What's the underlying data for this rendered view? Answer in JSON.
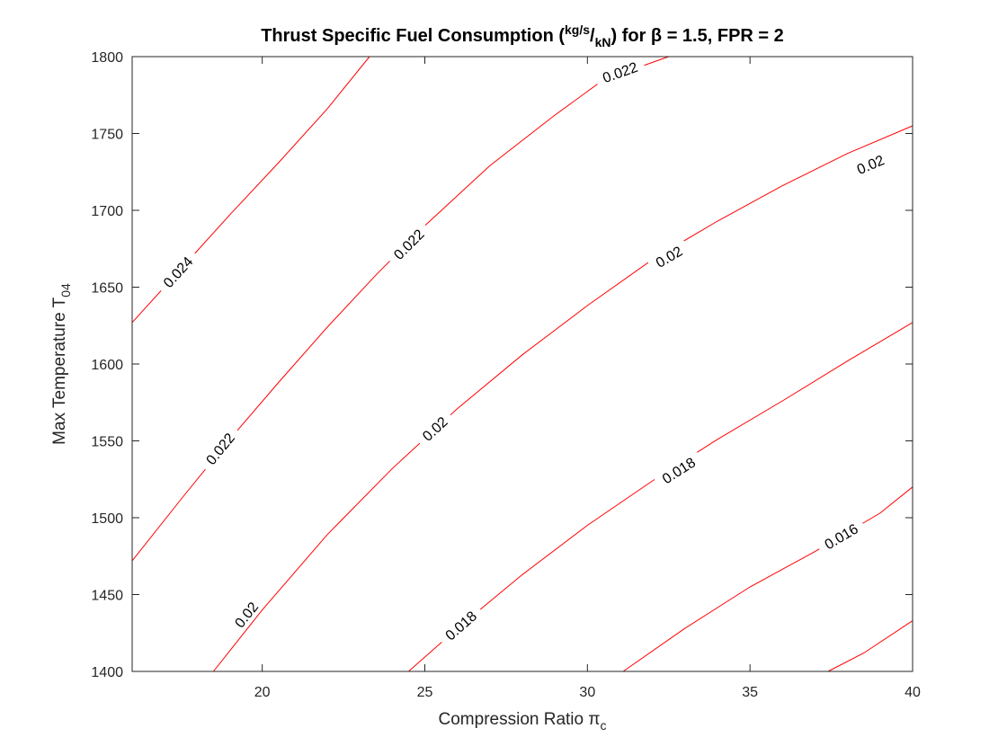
{
  "chart_data": {
    "type": "contour",
    "title": {
      "prefix": "Thrust Specific Fuel Consumption (",
      "unit_top": "kg/s",
      "unit_slash": "/",
      "unit_bottom": "kN",
      "suffix": ") for β = 1.5, FPR = 2"
    },
    "xlabel": {
      "text": "Compression Ratio π",
      "sub": "c"
    },
    "ylabel": {
      "text": "Max Temperature T",
      "sub": "04"
    },
    "xlim": [
      16,
      40
    ],
    "ylim": [
      1400,
      1800
    ],
    "xticks": [
      20,
      25,
      30,
      35,
      40
    ],
    "yticks": [
      1400,
      1450,
      1500,
      1550,
      1600,
      1650,
      1700,
      1750,
      1800
    ],
    "grid": false,
    "line_color": "#ff0000",
    "contours": [
      {
        "level": 0.024,
        "label": "0.024",
        "points": [
          [
            16,
            1627
          ],
          [
            17.5,
            1662
          ],
          [
            19,
            1697
          ],
          [
            20.5,
            1731
          ],
          [
            22,
            1766
          ],
          [
            23.3,
            1800
          ]
        ],
        "labels_at": [
          [
            17.4,
            1660
          ]
        ]
      },
      {
        "level": 0.022,
        "label": "0.022",
        "points": [
          [
            16,
            1472
          ],
          [
            17.5,
            1512
          ],
          [
            19,
            1551
          ],
          [
            20.5,
            1588
          ],
          [
            22,
            1624
          ],
          [
            23.5,
            1658
          ],
          [
            25,
            1690
          ],
          [
            27,
            1729
          ],
          [
            29,
            1762
          ],
          [
            30.5,
            1785
          ],
          [
            32.5,
            1800
          ]
        ],
        "labels_at": [
          [
            18.7,
            1545
          ],
          [
            24.5,
            1678
          ],
          [
            31,
            1790
          ]
        ]
      },
      {
        "level": 0.02,
        "label": "0.02",
        "points": [
          [
            18.5,
            1400
          ],
          [
            20,
            1440
          ],
          [
            22,
            1489
          ],
          [
            24,
            1532
          ],
          [
            26,
            1571
          ],
          [
            28,
            1606
          ],
          [
            30,
            1638
          ],
          [
            32,
            1668
          ],
          [
            34,
            1693
          ],
          [
            36,
            1716
          ],
          [
            38,
            1737
          ],
          [
            40,
            1755
          ]
        ],
        "labels_at": [
          [
            19.5,
            1437
          ],
          [
            25.3,
            1558
          ],
          [
            32.5,
            1670
          ],
          [
            38.7,
            1730
          ]
        ]
      },
      {
        "level": 0.018,
        "label": "0.018",
        "points": [
          [
            24.5,
            1400
          ],
          [
            26,
            1428
          ],
          [
            28,
            1463
          ],
          [
            30,
            1495
          ],
          [
            32,
            1524
          ],
          [
            34,
            1551
          ],
          [
            36,
            1576
          ],
          [
            38,
            1602
          ],
          [
            40,
            1627
          ]
        ],
        "labels_at": [
          [
            26.1,
            1430
          ],
          [
            32.8,
            1531
          ]
        ]
      },
      {
        "level": 0.016,
        "label": "0.016",
        "points": [
          [
            31.1,
            1400
          ],
          [
            33,
            1428
          ],
          [
            35,
            1455
          ],
          [
            37,
            1478
          ],
          [
            39,
            1503
          ],
          [
            40,
            1520
          ]
        ],
        "labels_at": [
          [
            37.8,
            1488
          ]
        ]
      },
      {
        "level": 0.014,
        "label": "",
        "points": [
          [
            37.4,
            1400
          ],
          [
            38.5,
            1412
          ],
          [
            40,
            1433
          ]
        ],
        "labels_at": []
      }
    ]
  }
}
